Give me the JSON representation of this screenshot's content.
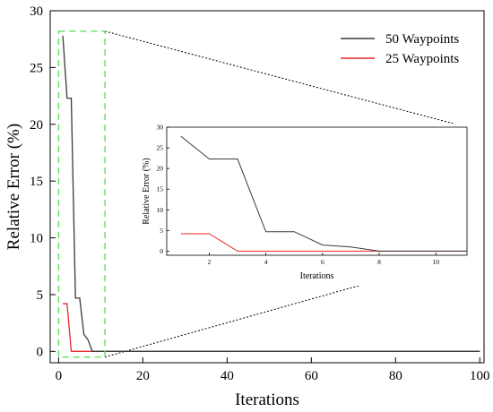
{
  "chart_data": {
    "type": "line",
    "xlabel": "Iterations",
    "ylabel": "Relative Error (%)",
    "xlim": [
      -2,
      101
    ],
    "ylim": [
      -1,
      30
    ],
    "xticks": [
      0,
      20,
      40,
      60,
      80,
      100
    ],
    "yticks": [
      0,
      5,
      10,
      15,
      20,
      25,
      30
    ],
    "grid": false,
    "legend": "top-right",
    "series": [
      {
        "name": "50 Waypoints",
        "color": "#3a3a3a",
        "x": [
          1,
          2,
          3,
          4,
          5,
          6,
          7,
          8,
          9,
          10,
          100
        ],
        "y": [
          27.8,
          22.3,
          22.3,
          4.7,
          4.7,
          1.5,
          1.0,
          0,
          0,
          0,
          0
        ]
      },
      {
        "name": "25 Waypoints",
        "color": "#e8282b",
        "x": [
          1,
          2,
          3,
          4,
          5,
          6,
          7,
          8,
          9,
          10,
          100
        ],
        "y": [
          4.2,
          4.2,
          0,
          0,
          0,
          0,
          0,
          0,
          0,
          0,
          0
        ]
      }
    ],
    "zoom_box": {
      "x": [
        0,
        11
      ],
      "y": [
        -0.5,
        28.2
      ],
      "color": "#5ee05e"
    },
    "inset": {
      "xlabel": "Iterations",
      "ylabel": "Relative Error (%)",
      "xlim": [
        0.5,
        11.1
      ],
      "ylim": [
        -1,
        30
      ],
      "xticks": [
        2,
        4,
        6,
        8,
        10
      ],
      "yticks": [
        0,
        5,
        10,
        15,
        20,
        25,
        30
      ]
    }
  }
}
